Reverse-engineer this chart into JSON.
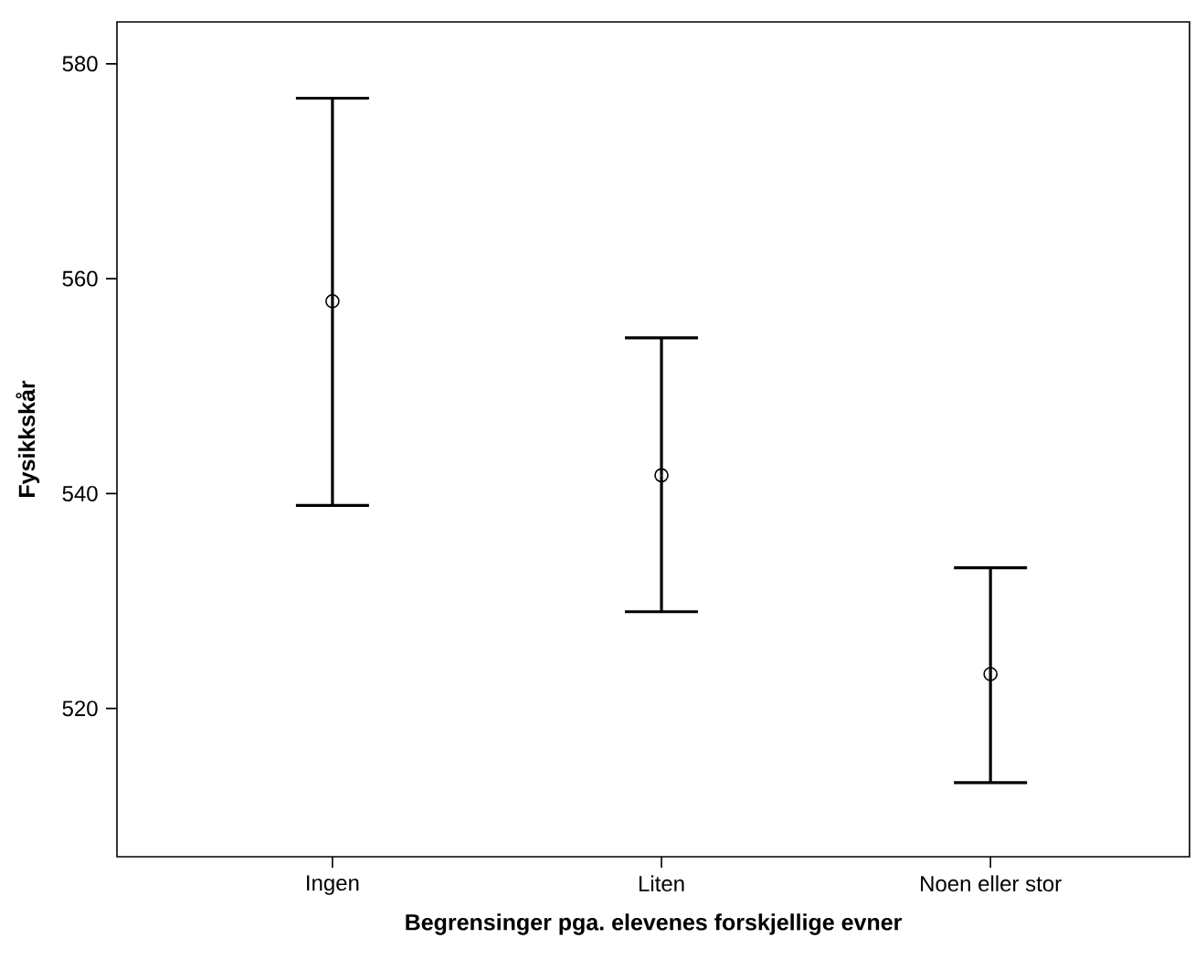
{
  "chart_data": {
    "type": "scatter",
    "xlabel": "Begrensinger pga. elevenes forskjellige evner",
    "ylabel": "Fysikkskår",
    "categories": [
      "Ingen",
      "Liten",
      "Noen eller stor"
    ],
    "values": [
      557.9,
      541.7,
      523.2
    ],
    "errors": [
      [
        538.9,
        576.8
      ],
      [
        529.0,
        554.5
      ],
      [
        513.1,
        533.1
      ]
    ],
    "color": "#000000",
    "marker": "circle",
    "ylim": [
      506.2,
      583.9
    ],
    "yticks": [
      520,
      540,
      560,
      580
    ]
  }
}
